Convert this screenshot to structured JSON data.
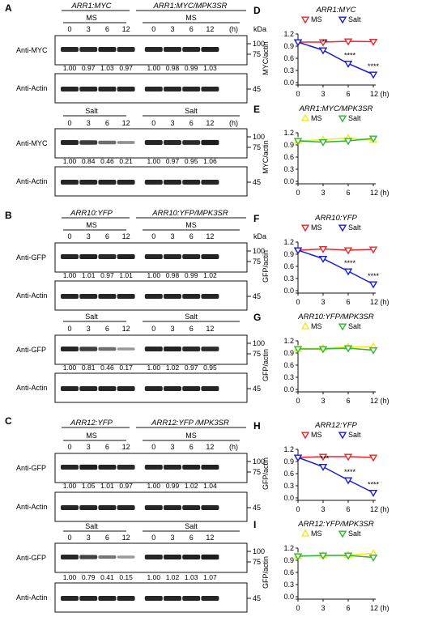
{
  "blots": [
    {
      "panel": "A",
      "headers": [
        "ARR1:MYC",
        "ARR1:MYC/MPK3SR"
      ],
      "blocks": [
        {
          "condition": [
            "MS",
            "MS"
          ],
          "timepoints": [
            "0",
            "3",
            "6",
            "12",
            "0",
            "3",
            "6",
            "12"
          ],
          "time_unit": "(h)",
          "kda_label": "kDa",
          "markers": [
            "100",
            "75"
          ],
          "rows": [
            {
              "label": "Anti-MYC",
              "quant": [
                "1.00",
                "0.97",
                "1.03",
                "0.97",
                "1.00",
                "0.98",
                "0.99",
                "1.03"
              ],
              "bands": [
                1,
                0.97,
                1.03,
                0.97,
                1,
                0.98,
                0.99,
                1.03
              ]
            },
            {
              "label": "Anti-Actin",
              "marker": "45"
            }
          ]
        },
        {
          "condition": [
            "Salt",
            "Salt"
          ],
          "timepoints": [
            "0",
            "3",
            "6",
            "12",
            "0",
            "3",
            "6",
            "12"
          ],
          "time_unit": "(h)",
          "markers": [
            "100",
            "75"
          ],
          "rows": [
            {
              "label": "Anti-MYC",
              "quant": [
                "1.00",
                "0.84",
                "0.46",
                "0.21",
                "1.00",
                "0.97",
                "0.95",
                "1.06"
              ],
              "bands": [
                1,
                0.84,
                0.46,
                0.21,
                1,
                0.97,
                0.95,
                1.06
              ]
            },
            {
              "label": "Anti-Actin",
              "marker": "45"
            }
          ]
        }
      ]
    },
    {
      "panel": "B",
      "headers": [
        "ARR10:YFP",
        "ARR10:YFP/MPK3SR"
      ],
      "blocks": [
        {
          "condition": [
            "MS",
            "MS"
          ],
          "timepoints": [
            "0",
            "3",
            "6",
            "12",
            "0",
            "3",
            "6",
            "12"
          ],
          "time_unit": "",
          "kda_label": "kDa",
          "markers": [
            "100",
            "75"
          ],
          "rows": [
            {
              "label": "Anti-GFP",
              "quant": [
                "1.00",
                "1.01",
                "0.97",
                "1.01",
                "1.00",
                "0.98",
                "0.99",
                "1.02"
              ],
              "bands": [
                1,
                1.01,
                0.97,
                1.01,
                1,
                0.98,
                0.99,
                1.02
              ]
            },
            {
              "label": "Anti-Actin",
              "marker": "45"
            }
          ]
        },
        {
          "condition": [
            "Salt",
            "Salt"
          ],
          "timepoints": [
            "0",
            "3",
            "6",
            "12",
            "0",
            "3",
            "6",
            "12"
          ],
          "time_unit": "",
          "markers": [
            "100",
            "75"
          ],
          "rows": [
            {
              "label": "Anti-GFP",
              "quant": [
                "1.00",
                "0.81",
                "0.46",
                "0.17",
                "1.00",
                "1.02",
                "0.97",
                "0.95"
              ],
              "bands": [
                1,
                0.81,
                0.46,
                0.17,
                1,
                1.02,
                0.97,
                0.95
              ]
            },
            {
              "label": "Anti-Actin",
              "marker": "45"
            }
          ]
        }
      ]
    },
    {
      "panel": "C",
      "headers": [
        "ARR12:YFP",
        "ARR12:YFP /MPK3SR"
      ],
      "blocks": [
        {
          "condition": [
            "MS",
            "MS"
          ],
          "timepoints": [
            "0",
            "3",
            "6",
            "12",
            "0",
            "3",
            "6",
            "12"
          ],
          "time_unit": "(h)",
          "markers": [
            "100",
            "75"
          ],
          "rows": [
            {
              "label": "Anti-GFP",
              "quant": [
                "1.00",
                "1.05",
                "1.01",
                "0.97",
                "1.00",
                "0.99",
                "1.02",
                "1.04"
              ],
              "bands": [
                1,
                1.05,
                1.01,
                0.97,
                1,
                0.99,
                1.02,
                1.04
              ]
            },
            {
              "label": "Anti-Actin",
              "marker": "45"
            }
          ]
        },
        {
          "condition": [
            "Salt",
            "Salt"
          ],
          "timepoints": [
            "0",
            "3",
            "6",
            "12",
            "0",
            "3",
            "6",
            "12"
          ],
          "time_unit": "",
          "markers": [
            "100",
            "75"
          ],
          "rows": [
            {
              "label": "Anti-GFP",
              "quant": [
                "1.00",
                "0.79",
                "0.41",
                "0.15",
                "1.00",
                "1.02",
                "1.03",
                "1.07"
              ],
              "bands": [
                1,
                0.79,
                0.41,
                0.15,
                1,
                1.02,
                1.03,
                1.07
              ]
            },
            {
              "label": "Anti-Actin",
              "marker": "45"
            }
          ]
        }
      ]
    }
  ],
  "chart_data": [
    {
      "panel": "D",
      "type": "line",
      "title": "ARR1:MYC",
      "ylabel": "MYC/actin",
      "x": [
        0,
        3,
        6,
        12
      ],
      "xticks": [
        "0",
        "3",
        "6",
        "12 (h)"
      ],
      "ylim": [
        0,
        1.2
      ],
      "yticks": [
        "0.0",
        "0.3",
        "0.6",
        "0.9",
        "1.2"
      ],
      "series": [
        {
          "name": "MS",
          "color": "#e8262b",
          "marker": "down",
          "values": [
            1.0,
            1.0,
            1.02,
            1.01
          ]
        },
        {
          "name": "Salt",
          "color": "#1a1ad6",
          "marker": "down",
          "values": [
            1.0,
            0.8,
            0.47,
            0.2
          ]
        }
      ],
      "annotations": [
        {
          "x": 3,
          "text": "**"
        },
        {
          "x": 6,
          "text": "****"
        },
        {
          "x": 12,
          "text": "****"
        }
      ]
    },
    {
      "panel": "E",
      "type": "line",
      "title": "ARR1:MYC/MPK3SR",
      "ylabel": "MYC/actin",
      "x": [
        0,
        3,
        6,
        12
      ],
      "xticks": [
        "0",
        "3",
        "6",
        "12 (h)"
      ],
      "ylim": [
        0,
        1.2
      ],
      "yticks": [
        "0.0",
        "0.3",
        "0.6",
        "0.9",
        "1.2"
      ],
      "series": [
        {
          "name": "MS",
          "color": "#f2ea1c",
          "marker": "up",
          "values": [
            1.0,
            1.03,
            1.07,
            1.02
          ]
        },
        {
          "name": "Salt",
          "color": "#2fb531",
          "marker": "down",
          "values": [
            1.0,
            0.97,
            1.0,
            1.06
          ]
        }
      ],
      "annotations": []
    },
    {
      "panel": "F",
      "type": "line",
      "title": "ARR10:YFP",
      "ylabel": "GFP/actin",
      "x": [
        0,
        3,
        6,
        12
      ],
      "xticks": [
        "0",
        "3",
        "6",
        "12 (h)"
      ],
      "ylim": [
        0,
        1.2
      ],
      "yticks": [
        "0.0",
        "0.3",
        "0.6",
        "0.9",
        "1.2"
      ],
      "series": [
        {
          "name": "MS",
          "color": "#e8262b",
          "marker": "down",
          "values": [
            1.0,
            1.03,
            1.0,
            1.02
          ]
        },
        {
          "name": "Salt",
          "color": "#1a1ad6",
          "marker": "down",
          "values": [
            1.0,
            0.79,
            0.48,
            0.16
          ]
        }
      ],
      "annotations": [
        {
          "x": 6,
          "text": "****"
        },
        {
          "x": 12,
          "text": "****"
        }
      ]
    },
    {
      "panel": "G",
      "type": "line",
      "title": "ARR10:YFP/MPK3SR",
      "ylabel": "GFP/actin",
      "x": [
        0,
        3,
        6,
        12
      ],
      "xticks": [
        "0",
        "3",
        "6",
        "12 (h)"
      ],
      "ylim": [
        0,
        1.2
      ],
      "yticks": [
        "0.0",
        "0.3",
        "0.6",
        "0.9",
        "1.2"
      ],
      "series": [
        {
          "name": "MS",
          "color": "#f2ea1c",
          "marker": "up",
          "values": [
            1.0,
            1.02,
            1.05,
            1.06
          ]
        },
        {
          "name": "Salt",
          "color": "#2fb531",
          "marker": "down",
          "values": [
            1.0,
            1.0,
            1.02,
            0.97
          ]
        }
      ],
      "annotations": []
    },
    {
      "panel": "H",
      "type": "line",
      "title": "ARR12:YFP",
      "ylabel": "GFP/actin",
      "x": [
        0,
        3,
        6,
        12
      ],
      "xticks": [
        "0",
        "3",
        "6",
        "12 (h)"
      ],
      "ylim": [
        0,
        1.2
      ],
      "yticks": [
        "0.0",
        "0.3",
        "0.6",
        "0.9",
        "1.2"
      ],
      "series": [
        {
          "name": "MS",
          "color": "#e8262b",
          "marker": "down",
          "values": [
            1.0,
            1.02,
            1.02,
            1.0
          ]
        },
        {
          "name": "Salt",
          "color": "#1a1ad6",
          "marker": "down",
          "values": [
            1.0,
            0.77,
            0.44,
            0.13
          ]
        }
      ],
      "annotations": [
        {
          "x": 3,
          "text": "***"
        },
        {
          "x": 6,
          "text": "****"
        },
        {
          "x": 12,
          "text": "****"
        }
      ]
    },
    {
      "panel": "I",
      "type": "line",
      "title": "ARR12:YFP/MPK3SR",
      "ylabel": "GFP/actin",
      "x": [
        0,
        3,
        6,
        12
      ],
      "xticks": [
        "0",
        "3",
        "6",
        "12 (h)"
      ],
      "ylim": [
        0,
        1.2
      ],
      "yticks": [
        "0.0",
        "0.3",
        "0.6",
        "0.9",
        "1.2"
      ],
      "series": [
        {
          "name": "MS",
          "color": "#f2ea1c",
          "marker": "up",
          "values": [
            1.0,
            1.02,
            1.03,
            1.07
          ]
        },
        {
          "name": "Salt",
          "color": "#2fb531",
          "marker": "down",
          "values": [
            1.0,
            1.02,
            1.02,
            0.97
          ]
        }
      ],
      "annotations": []
    }
  ]
}
